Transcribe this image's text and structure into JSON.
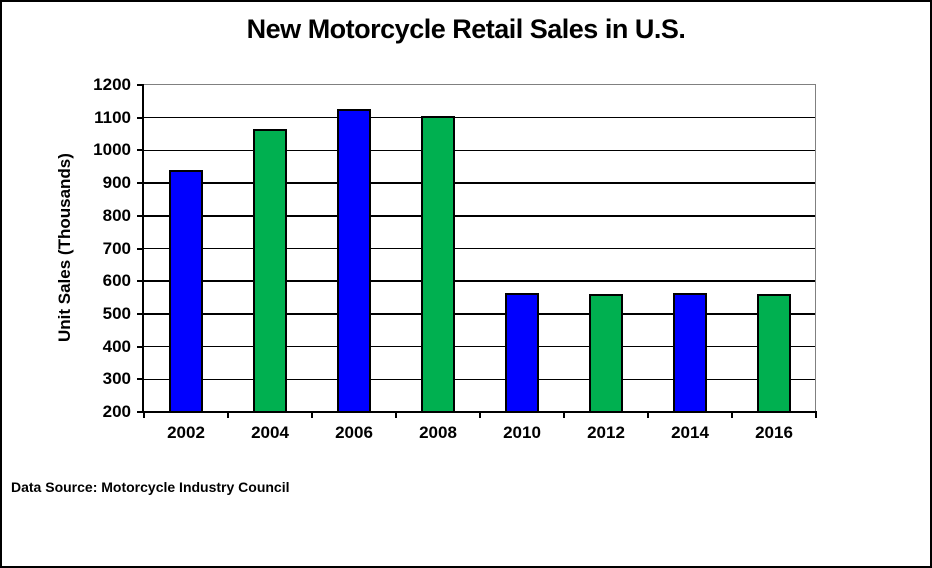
{
  "chart_data": {
    "type": "bar",
    "title": "New Motorcycle Retail Sales in U.S.",
    "xlabel": "",
    "ylabel": "Unit Sales (Thousands)",
    "categories": [
      "2002",
      "2004",
      "2006",
      "2008",
      "2010",
      "2012",
      "2014",
      "2016"
    ],
    "values": [
      937,
      1062,
      1123,
      1103,
      560,
      557,
      560,
      559
    ],
    "ylim": [
      200,
      1200
    ],
    "ytick_step": 100,
    "ytick_labels": [
      "200",
      "300",
      "400",
      "500",
      "600",
      "700",
      "800",
      "900",
      "1000",
      "1100",
      "1200"
    ],
    "grid": "horizontal gridlines on, black",
    "legend": "none",
    "source_note": "Data Source: Motorcycle Industry Council",
    "colors": {
      "bar_alternating": [
        "#0000FF",
        "#00B050"
      ],
      "bar_border": "#000000",
      "gridline": "#000000",
      "plot_outer_border": "#808080",
      "axis": "#000000",
      "text": "#000000",
      "background": "#FFFFFF"
    }
  }
}
